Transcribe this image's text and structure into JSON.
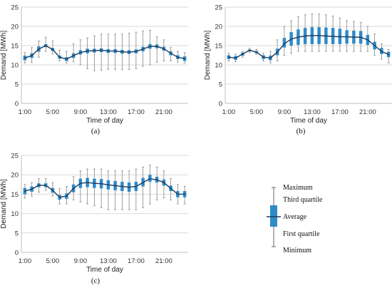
{
  "chart_data": [
    {
      "type": "box",
      "caption": "(a)",
      "xlabel": "Time of day",
      "ylabel": "Demand [MWh]",
      "ylim": [
        0,
        25
      ],
      "yticks": [
        0,
        5,
        10,
        15,
        20,
        25
      ],
      "hours": [
        1,
        2,
        3,
        4,
        5,
        6,
        7,
        8,
        9,
        10,
        11,
        12,
        13,
        14,
        15,
        16,
        17,
        18,
        19,
        20,
        21,
        22,
        23,
        24
      ],
      "xticklabels": [
        "1:00",
        "5:00",
        "9:00",
        "13:00",
        "17:00",
        "21:00"
      ],
      "grid": true,
      "series": {
        "average": [
          11.8,
          12.4,
          14.1,
          15.0,
          14.0,
          12.0,
          11.5,
          12.4,
          13.2,
          13.6,
          13.7,
          13.8,
          13.6,
          13.6,
          13.4,
          13.3,
          13.5,
          14.1,
          14.8,
          14.8,
          14.2,
          13.0,
          12.0,
          11.6
        ],
        "q1": [
          11.2,
          11.8,
          13.4,
          14.6,
          13.6,
          11.6,
          11.0,
          11.8,
          12.7,
          13.0,
          13.2,
          13.3,
          13.1,
          13.1,
          12.9,
          12.8,
          13.0,
          13.5,
          14.2,
          14.3,
          13.7,
          12.5,
          11.5,
          11.0
        ],
        "q3": [
          12.4,
          13.0,
          14.8,
          15.4,
          14.4,
          12.4,
          12.0,
          13.0,
          13.8,
          14.2,
          14.2,
          14.3,
          14.1,
          14.1,
          13.9,
          13.8,
          14.0,
          14.7,
          15.4,
          15.3,
          14.7,
          13.5,
          12.5,
          12.2
        ],
        "min": [
          10.5,
          10.6,
          12.0,
          13.5,
          12.8,
          11.0,
          10.5,
          10.8,
          10.0,
          9.0,
          8.5,
          8.6,
          8.8,
          8.8,
          8.8,
          8.8,
          9.0,
          9.6,
          10.0,
          10.7,
          11.0,
          11.0,
          10.7,
          10.5
        ],
        "max": [
          13.2,
          14.5,
          16.2,
          17.2,
          16.2,
          13.8,
          13.5,
          15.5,
          16.5,
          17.0,
          17.5,
          18.0,
          18.0,
          18.0,
          18.0,
          18.2,
          18.5,
          18.8,
          19.0,
          17.3,
          16.5,
          14.5,
          13.5,
          13.2
        ]
      }
    },
    {
      "type": "box",
      "caption": "(b)",
      "xlabel": "Time of day",
      "ylabel": "Demand [MWh]",
      "ylim": [
        0,
        25
      ],
      "yticks": [
        0,
        5,
        10,
        15,
        20,
        25
      ],
      "hours": [
        1,
        2,
        3,
        4,
        5,
        6,
        7,
        8,
        9,
        10,
        11,
        12,
        13,
        14,
        15,
        16,
        17,
        18,
        19,
        20,
        21,
        22,
        23,
        24
      ],
      "xticklabels": [
        "1:00",
        "5:00",
        "9:00",
        "13:00",
        "17:00",
        "21:00"
      ],
      "grid": true,
      "series": {
        "average": [
          12.0,
          11.8,
          12.8,
          13.8,
          13.3,
          12.0,
          11.8,
          13.3,
          15.5,
          16.7,
          17.2,
          17.5,
          17.6,
          17.6,
          17.5,
          17.4,
          17.3,
          17.3,
          17.2,
          17.2,
          16.5,
          15.0,
          13.5,
          12.7
        ],
        "q1": [
          11.5,
          11.3,
          12.4,
          13.5,
          13.0,
          11.5,
          11.2,
          12.5,
          14.5,
          15.0,
          15.2,
          15.4,
          15.4,
          15.4,
          15.4,
          15.4,
          15.4,
          15.5,
          15.5,
          15.5,
          15.2,
          14.0,
          12.8,
          12.0
        ],
        "q3": [
          12.5,
          12.3,
          13.2,
          14.0,
          13.6,
          12.5,
          12.4,
          14.2,
          17.0,
          18.5,
          19.2,
          19.6,
          19.8,
          19.8,
          19.7,
          19.6,
          19.4,
          19.0,
          18.9,
          18.8,
          17.8,
          16.0,
          14.4,
          13.4
        ],
        "min": [
          11.0,
          10.8,
          12.0,
          13.2,
          12.7,
          11.0,
          10.5,
          11.0,
          12.5,
          13.0,
          13.5,
          13.5,
          13.5,
          13.5,
          13.5,
          13.5,
          13.5,
          13.5,
          13.5,
          13.5,
          13.5,
          12.5,
          11.5,
          10.5
        ],
        "max": [
          13.0,
          12.8,
          13.5,
          14.3,
          14.0,
          13.0,
          13.5,
          16.5,
          20.0,
          21.5,
          22.5,
          23.0,
          23.2,
          23.2,
          23.0,
          22.7,
          22.2,
          21.5,
          21.3,
          21.0,
          20.0,
          18.0,
          15.5,
          14.0
        ]
      }
    },
    {
      "type": "box",
      "caption": "(c)",
      "xlabel": "Time of day",
      "ylabel": "Demand [MWh]",
      "ylim": [
        0,
        25
      ],
      "yticks": [
        0,
        5,
        10,
        15,
        20,
        25
      ],
      "hours": [
        1,
        2,
        3,
        4,
        5,
        6,
        7,
        8,
        9,
        10,
        11,
        12,
        13,
        14,
        15,
        16,
        17,
        18,
        19,
        20,
        21,
        22,
        23,
        24
      ],
      "xticklabels": [
        "1:00",
        "5:00",
        "9:00",
        "13:00",
        "17:00",
        "21:00"
      ],
      "grid": true,
      "series": {
        "average": [
          15.8,
          16.3,
          17.3,
          17.3,
          16.0,
          14.2,
          14.5,
          16.5,
          17.8,
          18.0,
          17.8,
          17.7,
          17.4,
          17.2,
          17.0,
          16.8,
          17.0,
          18.0,
          19.0,
          18.7,
          18.0,
          16.5,
          15.0,
          15.0
        ],
        "q1": [
          15.0,
          15.6,
          16.8,
          16.8,
          15.4,
          13.6,
          13.8,
          15.5,
          16.6,
          16.8,
          16.6,
          16.5,
          16.2,
          16.0,
          15.8,
          15.6,
          15.8,
          17.0,
          18.2,
          18.0,
          17.2,
          15.8,
          14.2,
          14.2
        ],
        "q3": [
          16.6,
          17.0,
          17.8,
          17.8,
          16.6,
          14.8,
          15.2,
          17.5,
          19.0,
          19.2,
          19.0,
          18.9,
          18.6,
          18.4,
          18.2,
          18.0,
          18.2,
          19.2,
          20.0,
          19.5,
          18.8,
          17.2,
          15.8,
          15.8
        ],
        "min": [
          14.0,
          14.5,
          15.5,
          16.0,
          14.5,
          12.5,
          12.5,
          13.5,
          13.0,
          12.5,
          12.0,
          11.5,
          11.0,
          11.0,
          11.0,
          11.0,
          11.0,
          11.5,
          12.5,
          13.5,
          14.0,
          13.5,
          12.5,
          12.5
        ],
        "max": [
          17.5,
          18.0,
          19.0,
          19.0,
          18.0,
          16.5,
          17.0,
          19.5,
          21.0,
          21.5,
          21.5,
          21.5,
          21.0,
          21.0,
          21.0,
          21.0,
          21.5,
          22.0,
          22.5,
          22.0,
          21.0,
          19.0,
          17.5,
          17.0
        ]
      }
    }
  ],
  "legend": {
    "items": [
      "Maximum",
      "Third quartile",
      "Average",
      "First quartile",
      "Minimum"
    ]
  },
  "colors": {
    "box": "#2e8bc8",
    "average_line": "#1f3b5c",
    "whisker": "#888888",
    "grid": "#d9d9d9",
    "axis": "#bfbfbf"
  }
}
